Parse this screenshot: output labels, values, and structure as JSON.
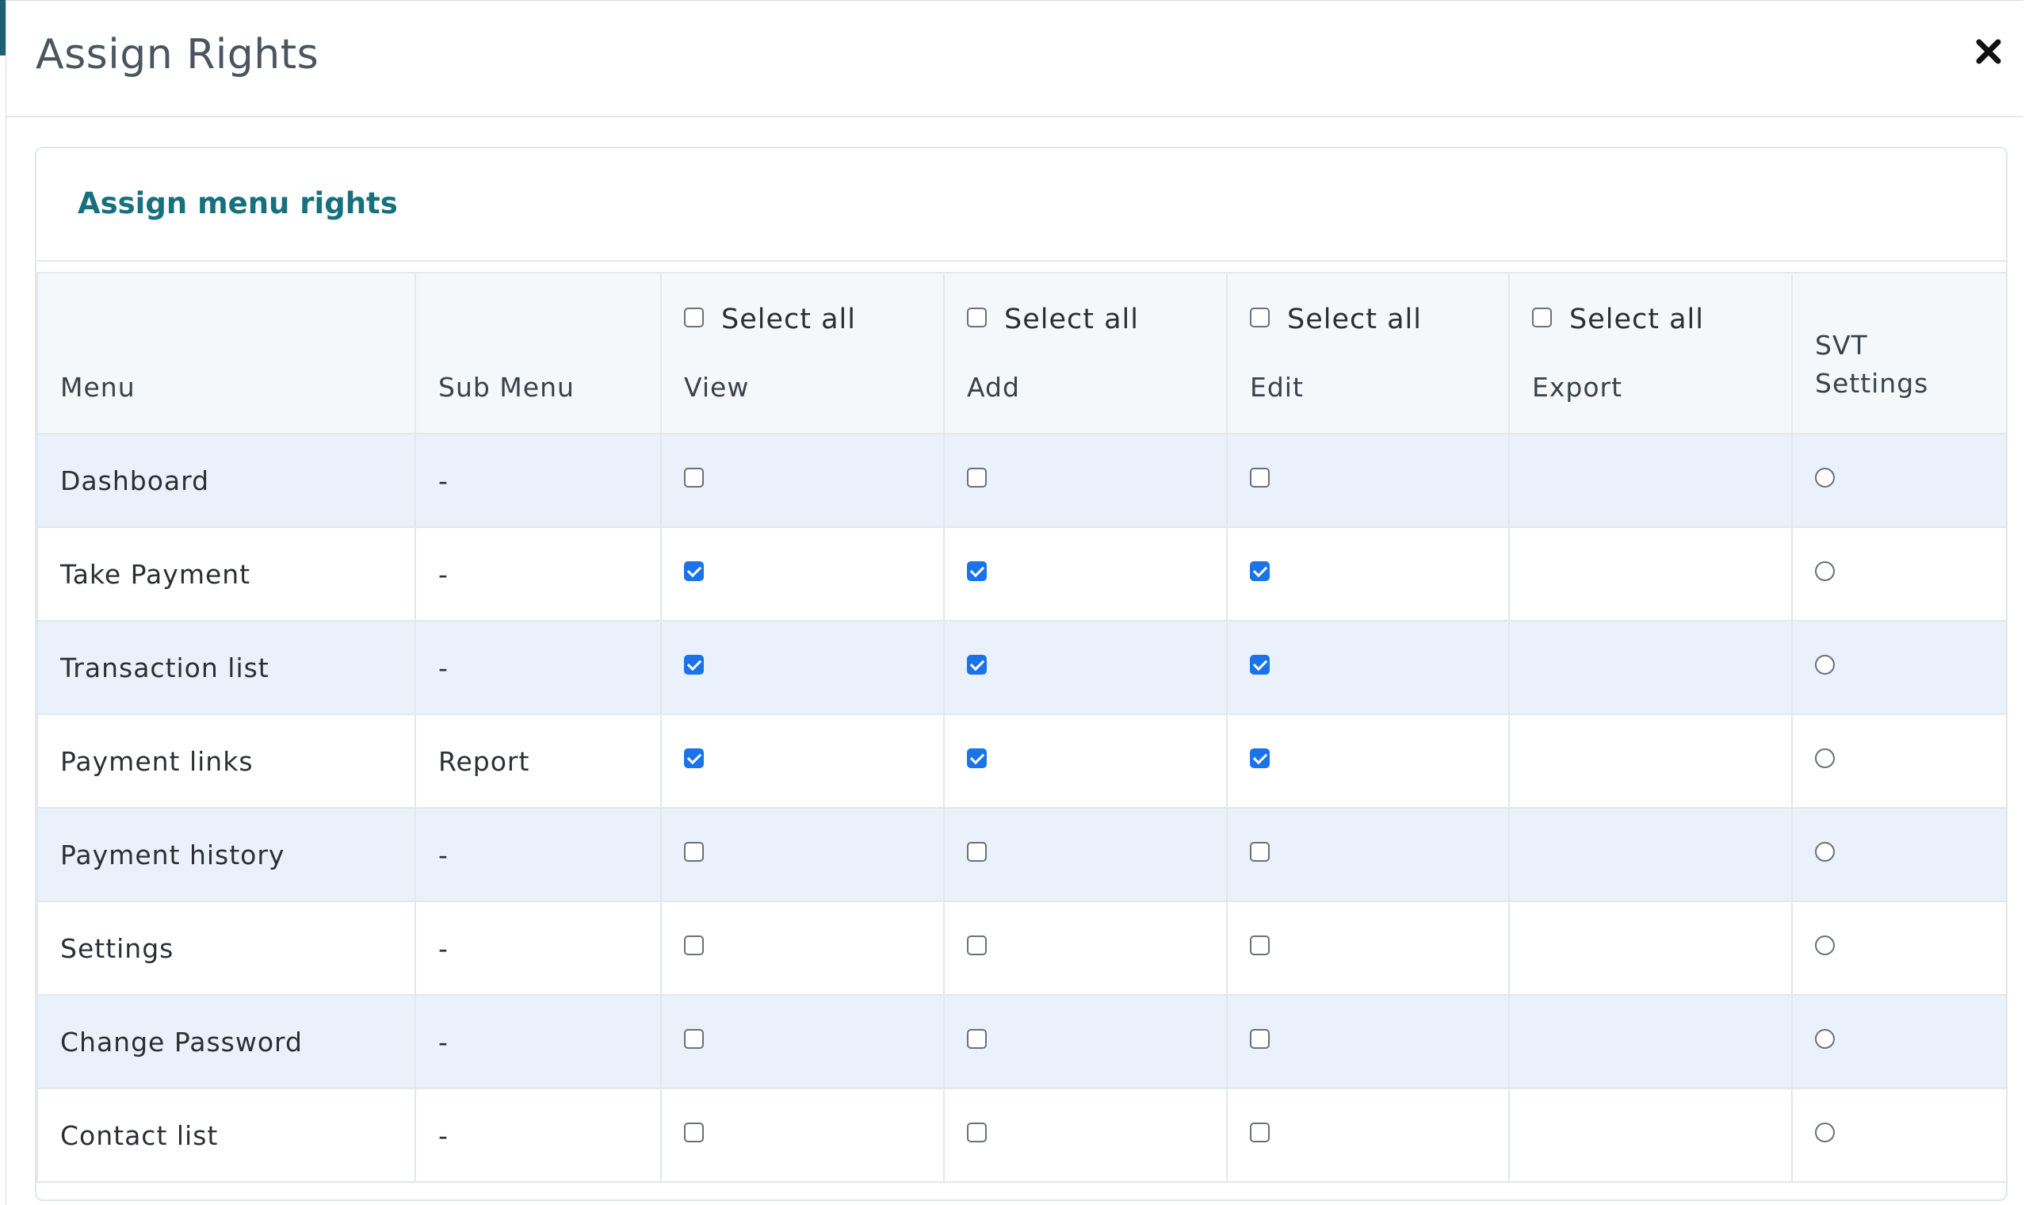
{
  "modal": {
    "title": "Assign Rights",
    "close_icon": "close-icon"
  },
  "card": {
    "title": "Assign menu rights"
  },
  "table": {
    "headers": {
      "menu": "Menu",
      "sub_menu": "Sub Menu",
      "view": "View",
      "add": "Add",
      "edit": "Edit",
      "export": "Export",
      "svt_line1": "SVT",
      "svt_line2": "Settings"
    },
    "select_all_label": "Select all",
    "rows": [
      {
        "menu": "Dashboard",
        "sub_menu": "-",
        "view": false,
        "add": false,
        "edit": false,
        "svt": false
      },
      {
        "menu": "Take Payment",
        "sub_menu": "-",
        "view": true,
        "add": true,
        "edit": true,
        "svt": false
      },
      {
        "menu": "Transaction list",
        "sub_menu": "-",
        "view": true,
        "add": true,
        "edit": true,
        "svt": false
      },
      {
        "menu": "Payment links",
        "sub_menu": "Report",
        "view": true,
        "add": true,
        "edit": true,
        "svt": false
      },
      {
        "menu": "Payment history",
        "sub_menu": "-",
        "view": false,
        "add": false,
        "edit": false,
        "svt": false
      },
      {
        "menu": "Settings",
        "sub_menu": "-",
        "view": false,
        "add": false,
        "edit": false,
        "svt": false
      },
      {
        "menu": "Change Password",
        "sub_menu": "-",
        "view": false,
        "add": false,
        "edit": false,
        "svt": false
      },
      {
        "menu": "Contact list",
        "sub_menu": "-",
        "view": false,
        "add": false,
        "edit": false,
        "svt": false
      }
    ]
  },
  "colors": {
    "accent": "#17707e",
    "checkbox_checked": "#1a73e8",
    "row_stripe": "#eaf1fb",
    "header_bg": "#f4f8fb"
  }
}
